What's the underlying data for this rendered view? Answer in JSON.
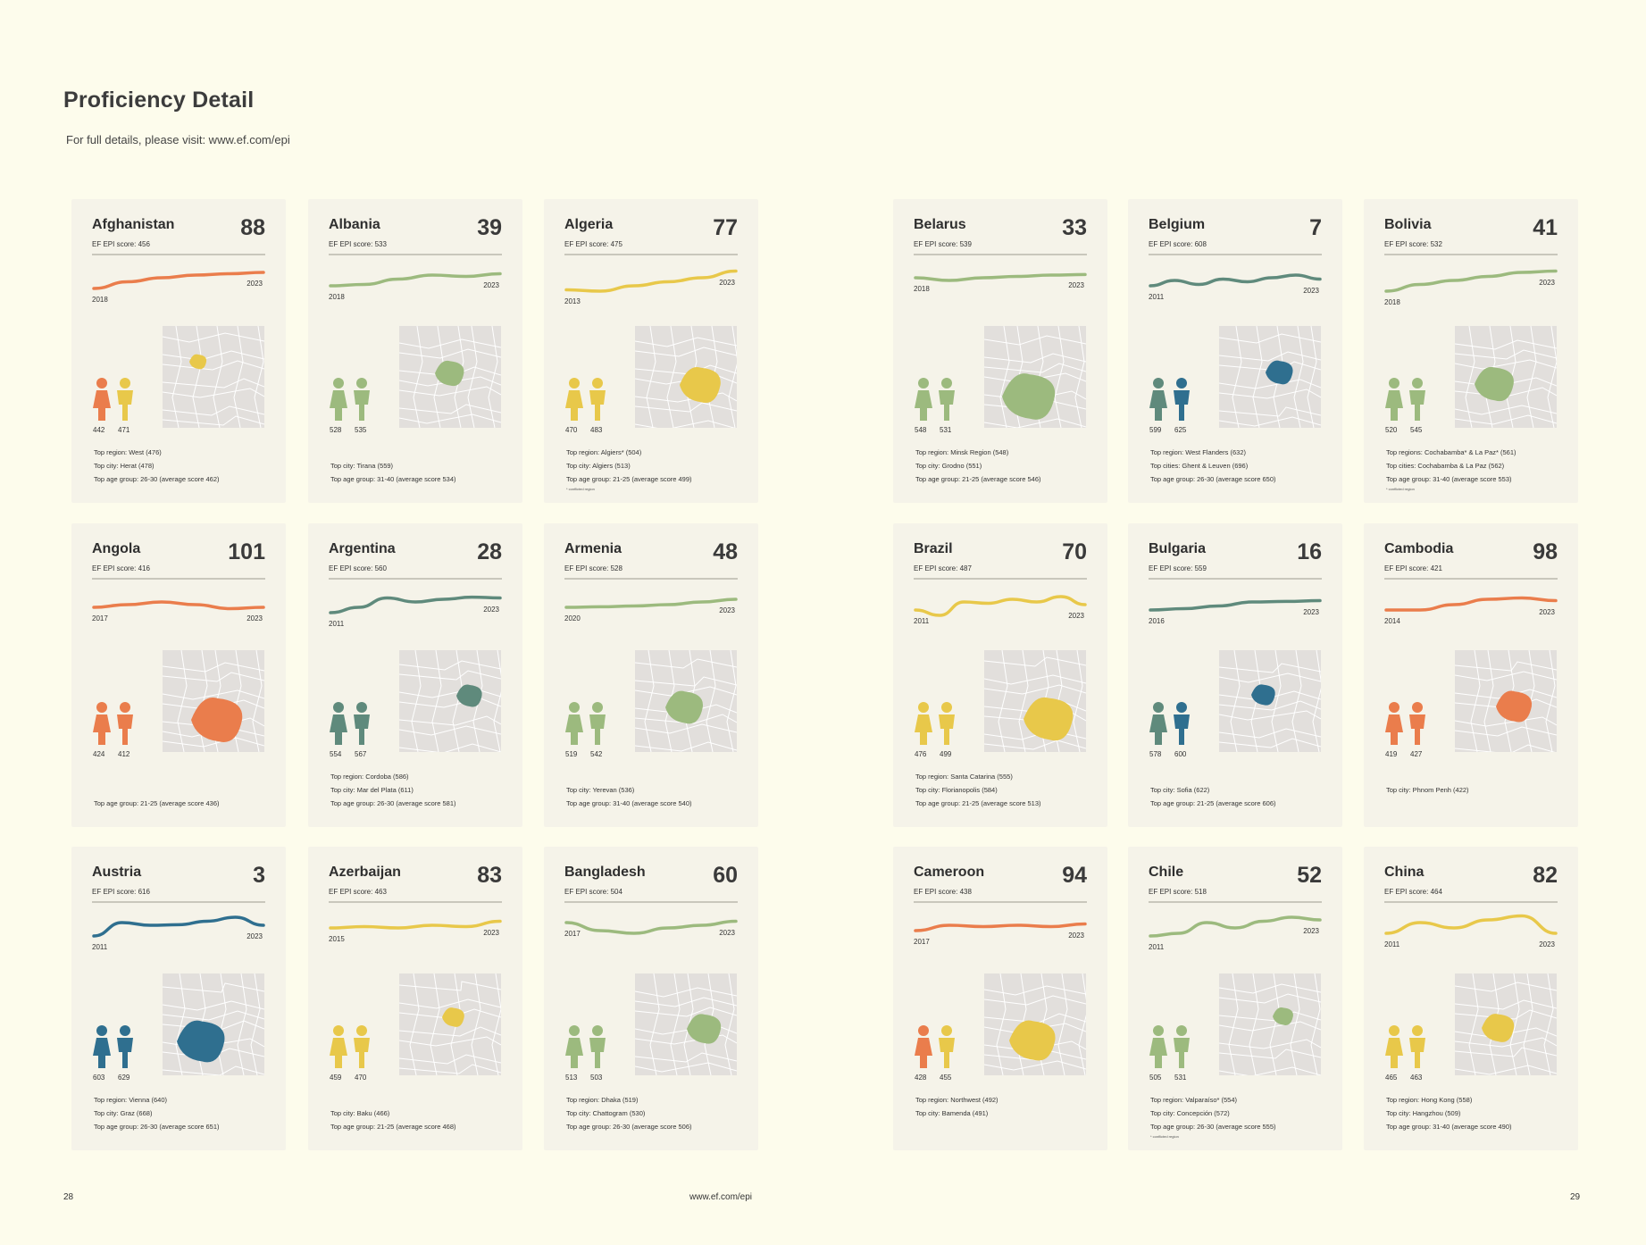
{
  "title": "Proficiency Detail",
  "subtitle": "For full details, please visit: www.ef.com/epi",
  "footer": {
    "left": "28",
    "center": "www.ef.com/epi",
    "right": "29"
  },
  "colors": {
    "very_high": "#2f6f8f",
    "high": "#5f8a7c",
    "moderate": "#9cba7e",
    "low": "#e8c84a",
    "very_low": "#ea7d4c"
  },
  "cards": [
    {
      "name": "Afghanistan",
      "rank": "88",
      "score": "EF EPI score: 456",
      "start": "2018",
      "end": "2023",
      "female": "442",
      "male": "471",
      "c1": "#ea7d4c",
      "c2": "#e8c84a",
      "trend": [
        0.2,
        0.45,
        0.6,
        0.7,
        0.75,
        0.8
      ],
      "facts": [
        "Top region: West (476)",
        "Top city: Herat (478)",
        "Top age group: 26-30 (average score 462)"
      ],
      "note": ""
    },
    {
      "name": "Albania",
      "rank": "39",
      "score": "EF EPI score: 533",
      "start": "2018",
      "end": "2023",
      "female": "528",
      "male": "535",
      "c1": "#9cba7e",
      "c2": "#9cba7e",
      "trend": [
        0.3,
        0.35,
        0.55,
        0.7,
        0.65,
        0.75
      ],
      "facts": [
        "",
        "Top city: Tirana (559)",
        "Top age group: 31-40 (average score 534)"
      ],
      "note": ""
    },
    {
      "name": "Algeria",
      "rank": "77",
      "score": "EF EPI score: 475",
      "start": "2013",
      "end": "2023",
      "female": "470",
      "male": "483",
      "c1": "#e8c84a",
      "c2": "#e8c84a",
      "trend": [
        0.15,
        0.1,
        0.3,
        0.45,
        0.6,
        0.85
      ],
      "facts": [
        "Top region: Algiers* (504)",
        "Top city: Algiers (513)",
        "Top age group: 21-25 (average score 499)"
      ],
      "note": "* conflicted region"
    },
    {
      "name": "Belarus",
      "rank": "33",
      "score": "EF EPI score: 539",
      "start": "2018",
      "end": "2023",
      "female": "548",
      "male": "531",
      "c1": "#9cba7e",
      "c2": "#9cba7e",
      "trend": [
        0.6,
        0.5,
        0.6,
        0.65,
        0.7,
        0.72
      ],
      "facts": [
        "Top region: Minsk Region (548)",
        "Top city: Grodno (551)",
        "Top age group: 21-25 (average score 546)"
      ],
      "note": ""
    },
    {
      "name": "Belgium",
      "rank": "7",
      "score": "EF EPI score: 608",
      "start": "2011",
      "end": "2023",
      "female": "599",
      "male": "625",
      "c1": "#5f8a7c",
      "c2": "#2f6f8f",
      "trend": [
        0.3,
        0.5,
        0.35,
        0.55,
        0.45,
        0.6,
        0.7,
        0.55
      ],
      "facts": [
        "Top region: West Flanders (632)",
        "Top cities: Ghent & Leuven (696)",
        "Top age group: 26-30 (average score 650)"
      ],
      "note": ""
    },
    {
      "name": "Bolivia",
      "rank": "41",
      "score": "EF EPI score: 532",
      "start": "2018",
      "end": "2023",
      "female": "520",
      "male": "545",
      "c1": "#9cba7e",
      "c2": "#9cba7e",
      "trend": [
        0.1,
        0.35,
        0.5,
        0.65,
        0.8,
        0.85
      ],
      "facts": [
        "Top regions: Cochabamba* & La Paz* (561)",
        "Top cities: Cochabamba & La Paz (562)",
        "Top age group: 31-40 (average score 553)"
      ],
      "note": "* conflicted region"
    },
    {
      "name": "Angola",
      "rank": "101",
      "score": "EF EPI score: 416",
      "start": "2017",
      "end": "2023",
      "female": "424",
      "male": "412",
      "c1": "#ea7d4c",
      "c2": "#ea7d4c",
      "trend": [
        0.4,
        0.5,
        0.6,
        0.5,
        0.35,
        0.4
      ],
      "facts": [
        "",
        "",
        "Top age group: 21-25 (average score 436)"
      ],
      "note": ""
    },
    {
      "name": "Argentina",
      "rank": "28",
      "score": "EF EPI score: 560",
      "start": "2011",
      "end": "2023",
      "female": "554",
      "male": "567",
      "c1": "#5f8a7c",
      "c2": "#5f8a7c",
      "trend": [
        0.2,
        0.4,
        0.75,
        0.6,
        0.7,
        0.78,
        0.75
      ],
      "facts": [
        "Top region: Cordoba (586)",
        "Top city: Mar del Plata (611)",
        "Top age group: 26-30 (average score 581)"
      ],
      "note": ""
    },
    {
      "name": "Armenia",
      "rank": "48",
      "score": "EF EPI score: 528",
      "start": "2020",
      "end": "2023",
      "female": "519",
      "male": "542",
      "c1": "#9cba7e",
      "c2": "#9cba7e",
      "trend": [
        0.4,
        0.42,
        0.45,
        0.5,
        0.6,
        0.7
      ],
      "facts": [
        "",
        "Top city: Yerevan (536)",
        "Top age group: 31-40 (average score 540)"
      ],
      "note": ""
    },
    {
      "name": "Brazil",
      "rank": "70",
      "score": "EF EPI score: 487",
      "start": "2011",
      "end": "2023",
      "female": "476",
      "male": "499",
      "c1": "#e8c84a",
      "c2": "#e8c84a",
      "trend": [
        0.3,
        0.1,
        0.6,
        0.55,
        0.7,
        0.6,
        0.8,
        0.5
      ],
      "facts": [
        "Top region: Santa Catarina (555)",
        "Top city: Florianopolis (584)",
        "Top age group: 21-25 (average score 513)"
      ],
      "note": ""
    },
    {
      "name": "Bulgaria",
      "rank": "16",
      "score": "EF EPI score: 559",
      "start": "2016",
      "end": "2023",
      "female": "578",
      "male": "600",
      "c1": "#5f8a7c",
      "c2": "#2f6f8f",
      "trend": [
        0.3,
        0.35,
        0.45,
        0.6,
        0.62,
        0.65
      ],
      "facts": [
        "",
        "Top city: Sofia (622)",
        "Top age group: 21-25 (average score 606)"
      ],
      "note": ""
    },
    {
      "name": "Cambodia",
      "rank": "98",
      "score": "EF EPI score: 421",
      "start": "2014",
      "end": "2023",
      "female": "419",
      "male": "427",
      "c1": "#ea7d4c",
      "c2": "#ea7d4c",
      "trend": [
        0.3,
        0.3,
        0.5,
        0.7,
        0.75,
        0.65
      ],
      "facts": [
        "",
        "Top city: Phnom Penh (422)",
        ""
      ],
      "note": ""
    },
    {
      "name": "Austria",
      "rank": "3",
      "score": "EF EPI score: 616",
      "start": "2011",
      "end": "2023",
      "female": "603",
      "male": "629",
      "c1": "#2f6f8f",
      "c2": "#2f6f8f",
      "trend": [
        0.2,
        0.7,
        0.6,
        0.62,
        0.75,
        0.9,
        0.6
      ],
      "facts": [
        "Top region: Vienna (640)",
        "Top city: Graz (668)",
        "Top age group: 26-30 (average score 651)"
      ],
      "note": ""
    },
    {
      "name": "Azerbaijan",
      "rank": "83",
      "score": "EF EPI score: 463",
      "start": "2015",
      "end": "2023",
      "female": "459",
      "male": "470",
      "c1": "#e8c84a",
      "c2": "#e8c84a",
      "trend": [
        0.5,
        0.55,
        0.5,
        0.6,
        0.55,
        0.75
      ],
      "facts": [
        "",
        "Top city: Baku (466)",
        "Top age group: 21-25 (average score 468)"
      ],
      "note": ""
    },
    {
      "name": "Bangladesh",
      "rank": "60",
      "score": "EF EPI score: 504",
      "start": "2017",
      "end": "2023",
      "female": "513",
      "male": "503",
      "c1": "#9cba7e",
      "c2": "#9cba7e",
      "trend": [
        0.7,
        0.4,
        0.3,
        0.5,
        0.6,
        0.75
      ],
      "facts": [
        "Top region: Dhaka (519)",
        "Top city: Chattogram (530)",
        "Top age group: 26-30 (average score 506)"
      ],
      "note": ""
    },
    {
      "name": "Cameroon",
      "rank": "94",
      "score": "EF EPI score: 438",
      "start": "2017",
      "end": "2023",
      "female": "428",
      "male": "455",
      "c1": "#ea7d4c",
      "c2": "#e8c84a",
      "trend": [
        0.4,
        0.6,
        0.55,
        0.6,
        0.55,
        0.65
      ],
      "facts": [
        "Top region: Northwest (492)",
        "Top city: Bamenda (491)",
        ""
      ],
      "note": ""
    },
    {
      "name": "Chile",
      "rank": "52",
      "score": "EF EPI score: 518",
      "start": "2011",
      "end": "2023",
      "female": "505",
      "male": "531",
      "c1": "#9cba7e",
      "c2": "#9cba7e",
      "trend": [
        0.2,
        0.3,
        0.7,
        0.5,
        0.75,
        0.9,
        0.8
      ],
      "facts": [
        "Top region: Valparaíso* (554)",
        "Top city: Concepción (572)",
        "Top age group: 26-30 (average score 555)"
      ],
      "note": "* conflicted region"
    },
    {
      "name": "China",
      "rank": "82",
      "score": "EF EPI score: 464",
      "start": "2011",
      "end": "2023",
      "female": "465",
      "male": "463",
      "c1": "#e8c84a",
      "c2": "#e8c84a",
      "trend": [
        0.3,
        0.7,
        0.5,
        0.8,
        0.95,
        0.3
      ],
      "facts": [
        "Top region: Hong Kong (558)",
        "Top city: Hangzhou (509)",
        "Top age group: 31-40 (average score 490)"
      ],
      "note": ""
    }
  ]
}
